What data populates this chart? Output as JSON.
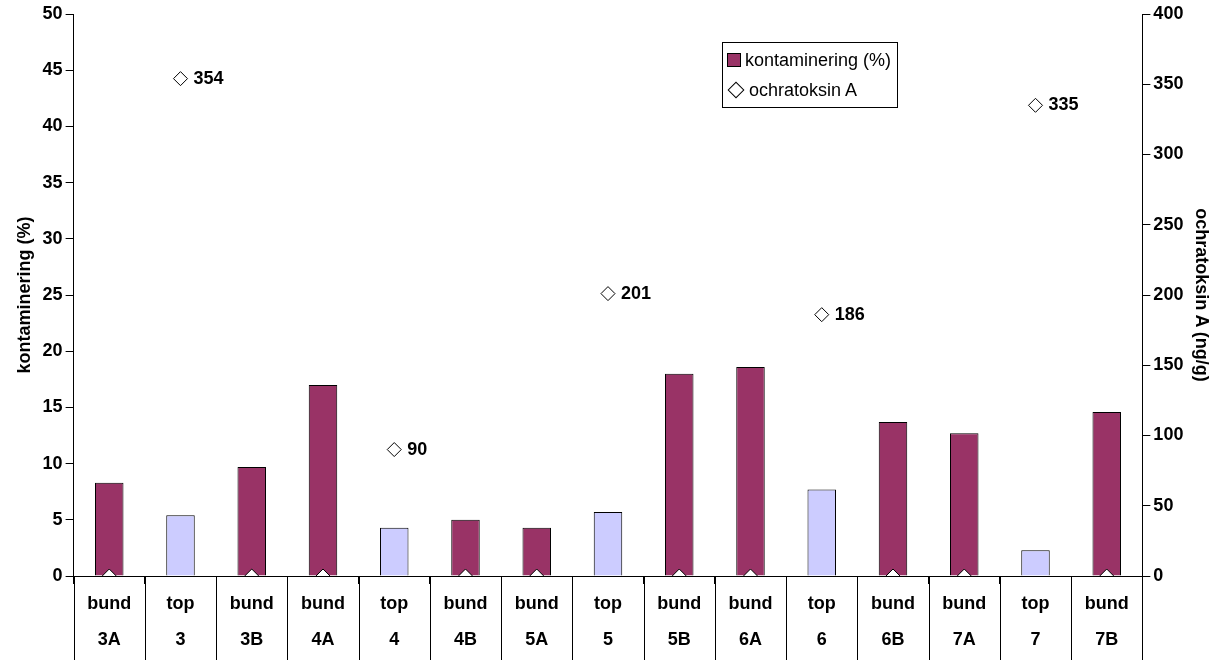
{
  "chart_data": {
    "type": "bar",
    "categories": [
      "bund\n3A",
      "top\n3",
      "bund\n3B",
      "bund\n4A",
      "top\n4",
      "bund\n4B",
      "bund\n5A",
      "top\n5",
      "bund\n5B",
      "bund\n6A",
      "top\n6",
      "bund\n6B",
      "bund\n7A",
      "top\n7",
      "bund\n7B"
    ],
    "series": [
      {
        "name": "kontaminering (%)",
        "color": "#993366",
        "colors": [
          "#993366",
          "#ccccff",
          "#993366",
          "#993366",
          "#ccccff",
          "#993366",
          "#993366",
          "#ccccff",
          "#993366",
          "#993366",
          "#ccccff",
          "#993366",
          "#993366",
          "#ccccff",
          "#993366"
        ],
        "values": [
          8.3,
          5.4,
          9.7,
          17.0,
          4.3,
          5.0,
          4.3,
          5.7,
          18.0,
          18.6,
          7.7,
          13.7,
          12.7,
          2.3,
          14.6
        ]
      },
      {
        "name": "ochratoksin A",
        "type": "scatter",
        "axis": "y2",
        "color": "#000000",
        "marker": "diamond",
        "values": [
          0,
          354,
          0,
          0,
          90,
          0,
          0,
          201,
          0,
          0,
          186,
          0,
          0,
          335,
          0
        ],
        "value_labels": [
          null,
          "354",
          null,
          null,
          "90",
          null,
          null,
          "201",
          null,
          null,
          "186",
          null,
          null,
          "335",
          null
        ]
      }
    ],
    "ylabel": "kontaminering (%)",
    "y2label": "ochratoksin A (ng/g)",
    "ylim": [
      0,
      50
    ],
    "yticks": [
      0,
      5,
      10,
      15,
      20,
      25,
      30,
      35,
      40,
      45,
      50
    ],
    "y2lim": [
      0,
      400
    ],
    "y2ticks": [
      0,
      50,
      100,
      150,
      200,
      250,
      300,
      350,
      400
    ],
    "grid": false,
    "legend": "top right"
  }
}
